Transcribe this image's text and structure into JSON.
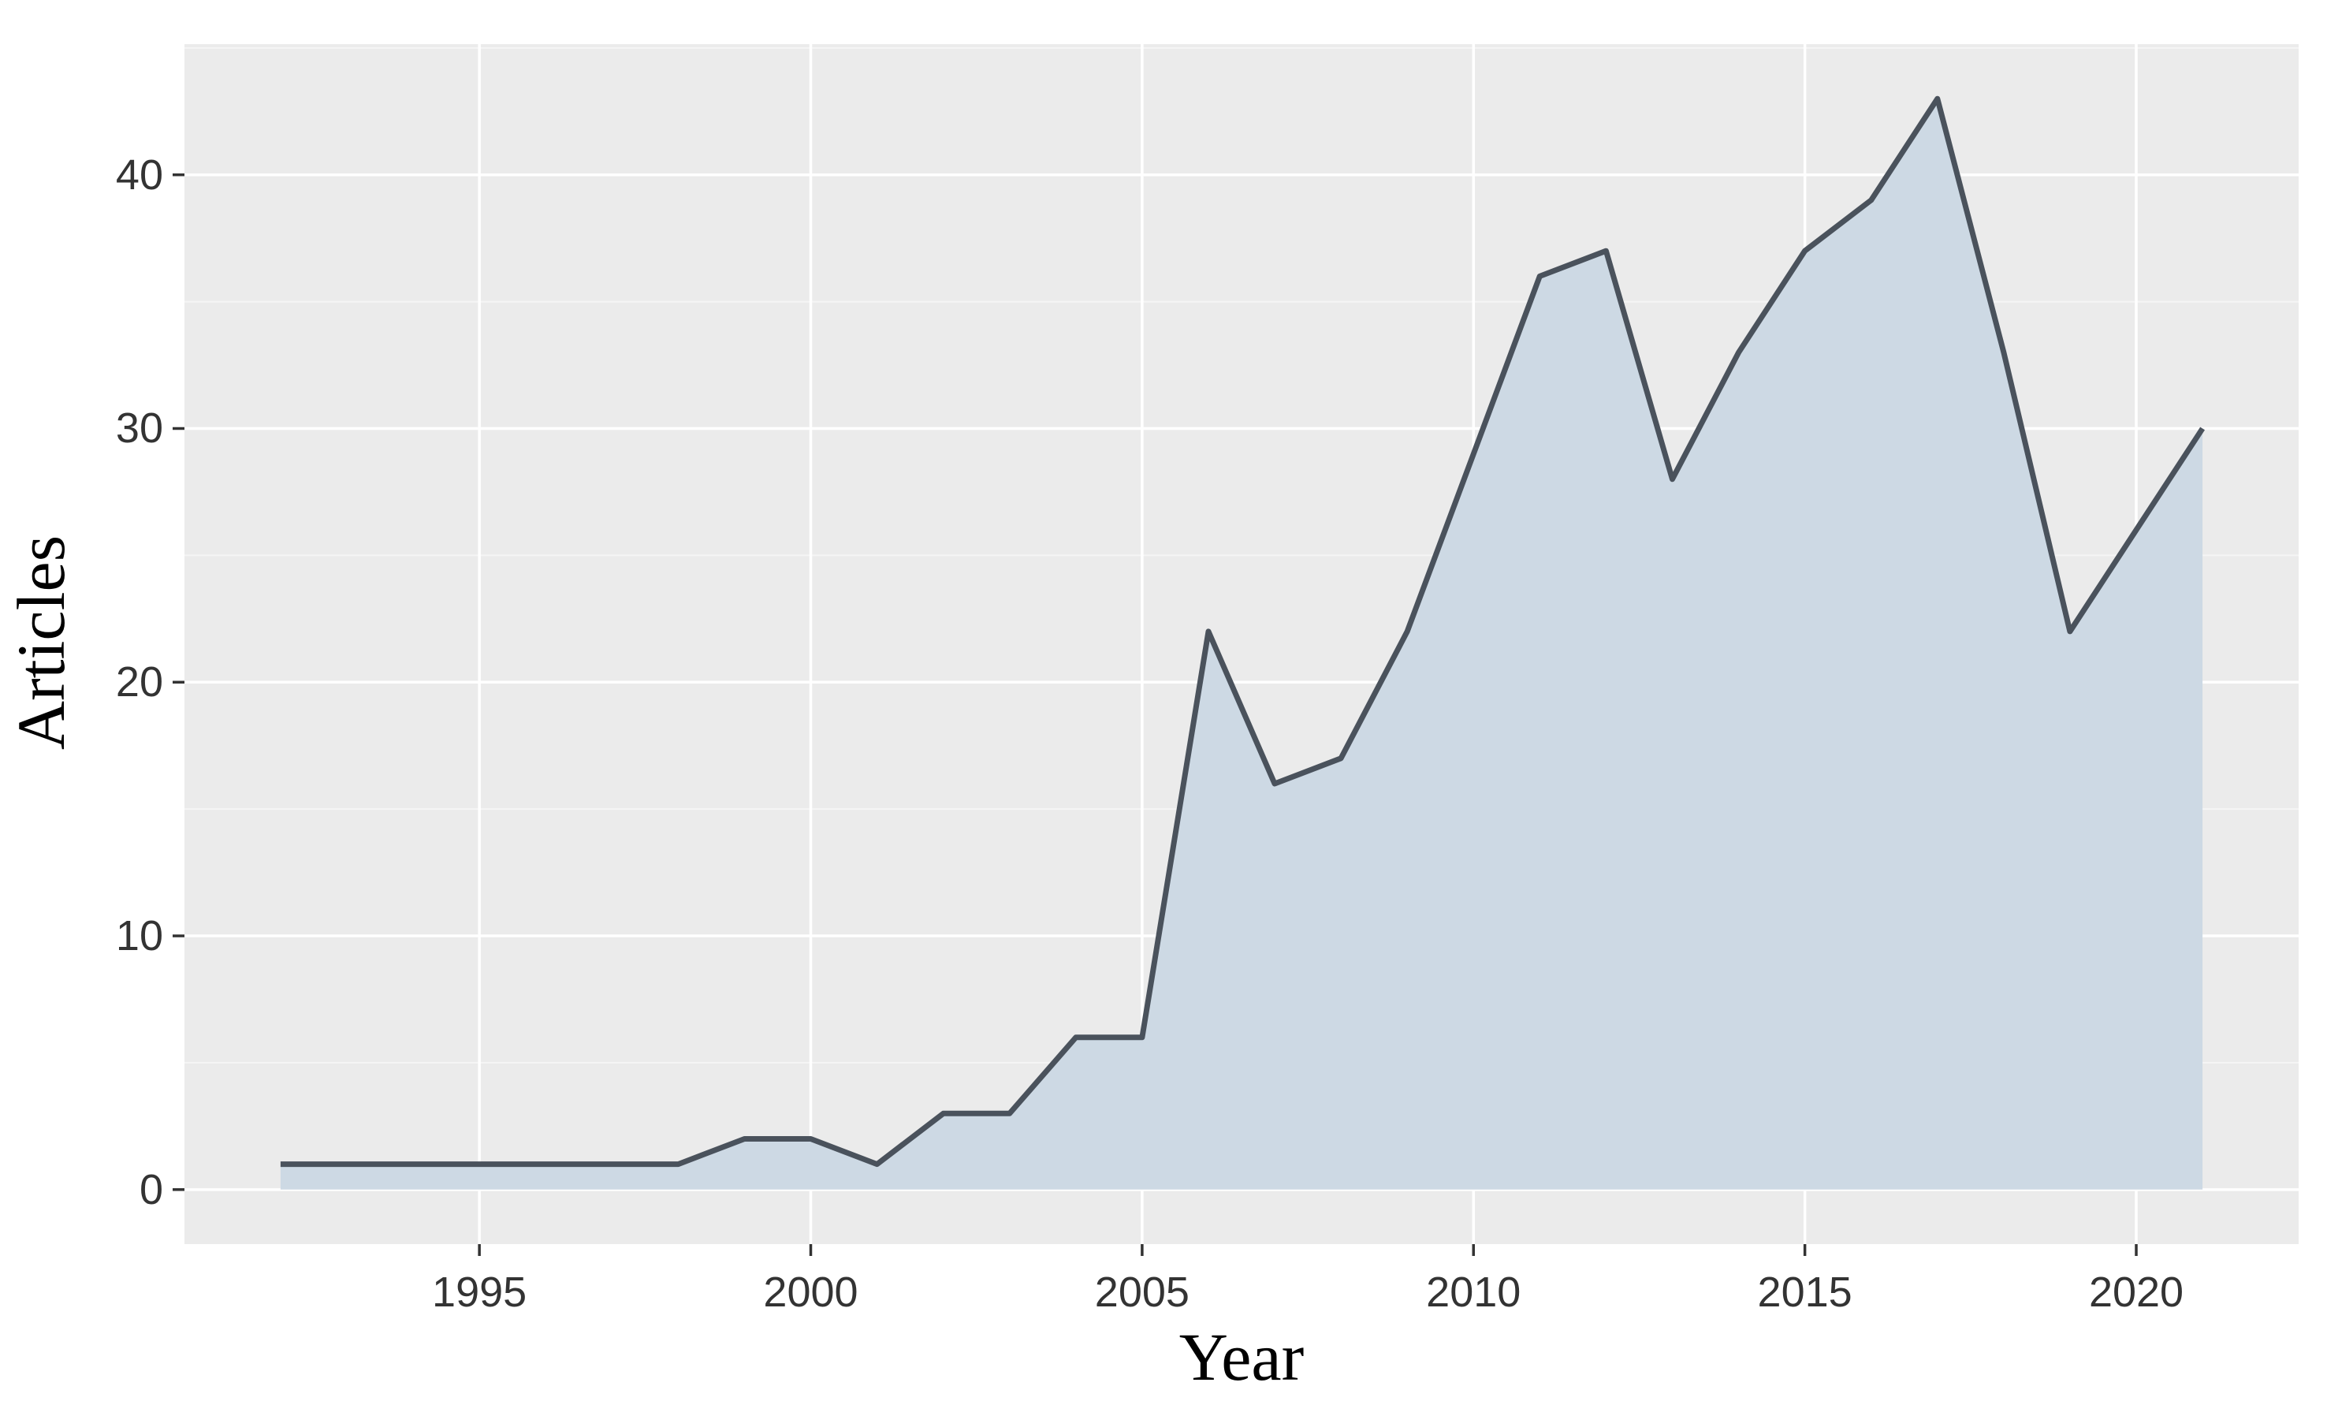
{
  "page": {
    "background_color": "#ffffff",
    "description": "ggplot-style area chart of number of articles published per year"
  },
  "chart_data": {
    "type": "area",
    "title": "",
    "xlabel": "Year",
    "ylabel": "Articles",
    "x": [
      1992,
      1993,
      1994,
      1995,
      1996,
      1997,
      1998,
      1999,
      2000,
      2001,
      2002,
      2003,
      2004,
      2005,
      2006,
      2007,
      2008,
      2009,
      2010,
      2011,
      2012,
      2013,
      2014,
      2015,
      2016,
      2017,
      2018,
      2019,
      2020,
      2021
    ],
    "values": [
      1,
      1,
      1,
      1,
      1,
      1,
      1,
      2,
      2,
      1,
      3,
      3,
      6,
      6,
      22,
      16,
      17,
      22,
      29,
      36,
      37,
      28,
      33,
      37,
      39,
      43,
      33,
      22,
      26,
      30
    ],
    "x_ticks": [
      1995,
      2000,
      2005,
      2010,
      2015,
      2020
    ],
    "x_tick_labels": [
      "1995",
      "2000",
      "2005",
      "2010",
      "2015",
      "2020"
    ],
    "y_ticks": [
      0,
      10,
      20,
      30,
      40
    ],
    "y_tick_labels": [
      "0",
      "10",
      "20",
      "30",
      "40"
    ],
    "y_minor_gridlines": [
      5,
      15,
      25,
      35,
      45
    ],
    "xlim": [
      1990.55,
      2022.45
    ],
    "ylim": [
      -2.15,
      45.15
    ],
    "grid": "on",
    "legend": "none",
    "colors": {
      "area_fill": "#cdd9e4",
      "line": "#4a525c",
      "panel_background": "#ebebeb",
      "grid_major": "#ffffff",
      "grid_minor": "#f5f5f5",
      "tick_mark": "#333333",
      "tick_text": "#333333",
      "axis_title_text": "#000000"
    }
  }
}
